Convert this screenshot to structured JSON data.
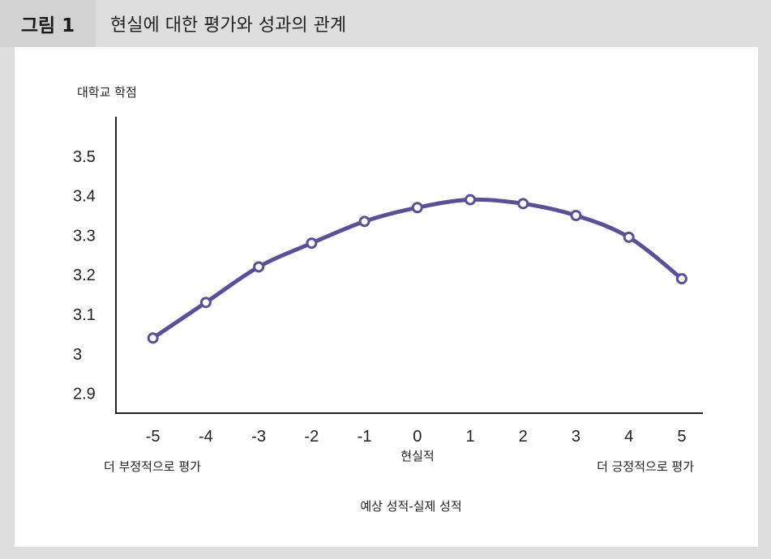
{
  "header": {
    "figure_tag": "그림 1",
    "title": "현실에 대한 평가와 성과의 관계"
  },
  "chart_data": {
    "type": "line",
    "ylabel": "대학교 학점",
    "xlabel": "예상 성적-실제 성적",
    "x_center_label": "현실적",
    "x_left_label": "더 부정적으로 평가",
    "x_right_label": "더 긍정적으로 평가",
    "x": [
      -5,
      -4,
      -3,
      -2,
      -1,
      0,
      1,
      2,
      3,
      4,
      5
    ],
    "x_tick_labels": [
      "-5",
      "-4",
      "-3",
      "-2",
      "-1",
      "0",
      "1",
      "2",
      "3",
      "4",
      "5"
    ],
    "y": [
      3.04,
      3.13,
      3.22,
      3.28,
      3.335,
      3.37,
      3.39,
      3.38,
      3.35,
      3.295,
      3.19
    ],
    "y_ticks": [
      2.9,
      3,
      3.1,
      3.2,
      3.3,
      3.4,
      3.5
    ],
    "y_tick_labels": [
      "2.9",
      "3",
      "3.1",
      "3.2",
      "3.3",
      "3.4",
      "3.5"
    ],
    "ylim": [
      2.85,
      3.6
    ],
    "xlim": [
      -5.7,
      5.4
    ],
    "line_color": "#5b4f9c",
    "left_label_color": "#c8323b",
    "right_label_color": "#3a6ea5",
    "grid": false
  }
}
